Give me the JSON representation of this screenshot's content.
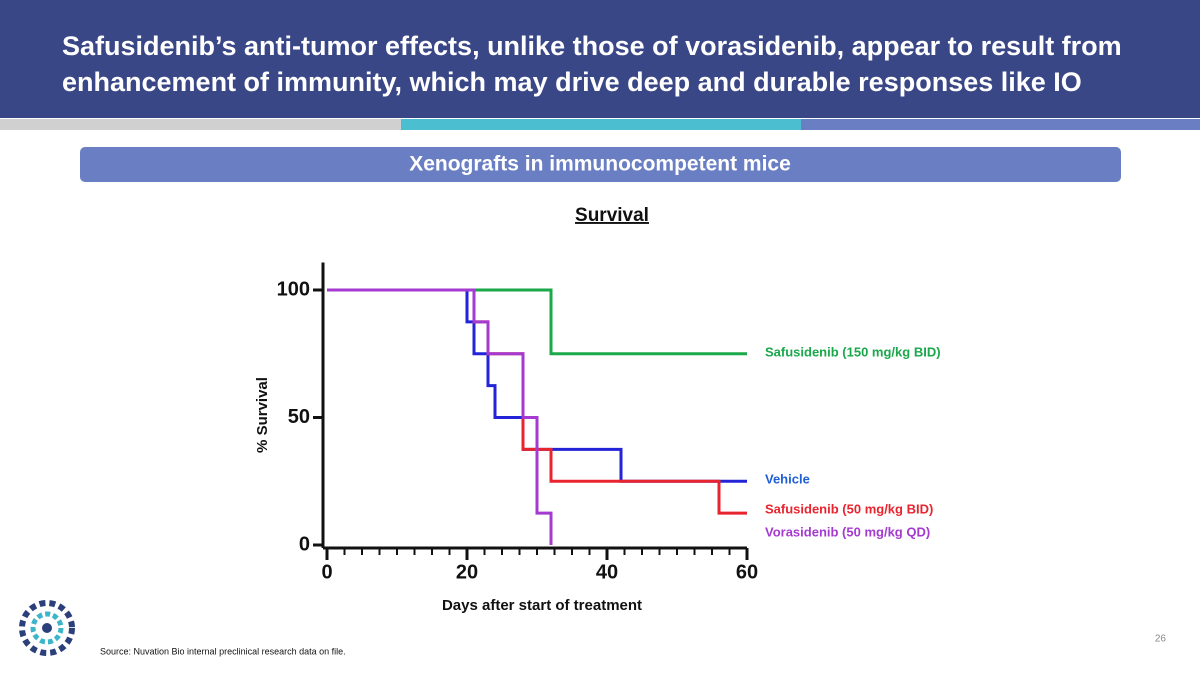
{
  "header": {
    "title": "Safusidenib’s anti-tumor effects, unlike those of vorasidenib, appear to result from enhancement of immunity, which may drive deep and durable responses like IO"
  },
  "banner": "Xenografts in immunocompetent mice",
  "chart_data": {
    "type": "line",
    "step": "post",
    "title": "Survival",
    "x_label": "Days after start of treatment",
    "y_label": "% Survival",
    "xlim": [
      0,
      60
    ],
    "ylim": [
      0,
      110
    ],
    "xticks": [
      0,
      20,
      40,
      60
    ],
    "xminorticks": [
      2.5,
      5,
      7.5,
      10,
      12.5,
      15,
      17.5,
      22.5,
      25,
      27.5,
      30,
      32.5,
      35,
      37.5,
      42.5,
      45,
      47.5,
      50,
      52.5,
      55,
      57.5
    ],
    "yticks": [
      0,
      50,
      100
    ],
    "series": [
      {
        "name": "Safusidenib (150 mg/kg BID)",
        "color": "#1aa84a",
        "x": [
          0,
          32,
          60
        ],
        "values": [
          100,
          75,
          75
        ]
      },
      {
        "name": "Vehicle",
        "color": "#2323d8",
        "label_color": "#1f5fd6",
        "x": [
          0,
          20,
          21,
          23,
          24,
          28,
          42,
          60
        ],
        "values": [
          100,
          87.5,
          75,
          62.5,
          50,
          37.5,
          25,
          25
        ]
      },
      {
        "name": "Safusidenib (50 mg/kg BID)",
        "color": "#e8252f",
        "x": [
          0,
          21,
          23,
          28,
          32,
          56,
          60
        ],
        "values": [
          100,
          87.5,
          75,
          37.5,
          25,
          12.5,
          12.5
        ]
      },
      {
        "name": "Vorasidenib (50 mg/kg QD)",
        "color": "#a43ad0",
        "x": [
          0,
          21,
          23,
          28,
          30,
          32
        ],
        "values": [
          100,
          87.5,
          75,
          50,
          12.5,
          0
        ]
      }
    ]
  },
  "source": "Source: Nuvation Bio internal preclinical research data on file.",
  "page_number": "26"
}
